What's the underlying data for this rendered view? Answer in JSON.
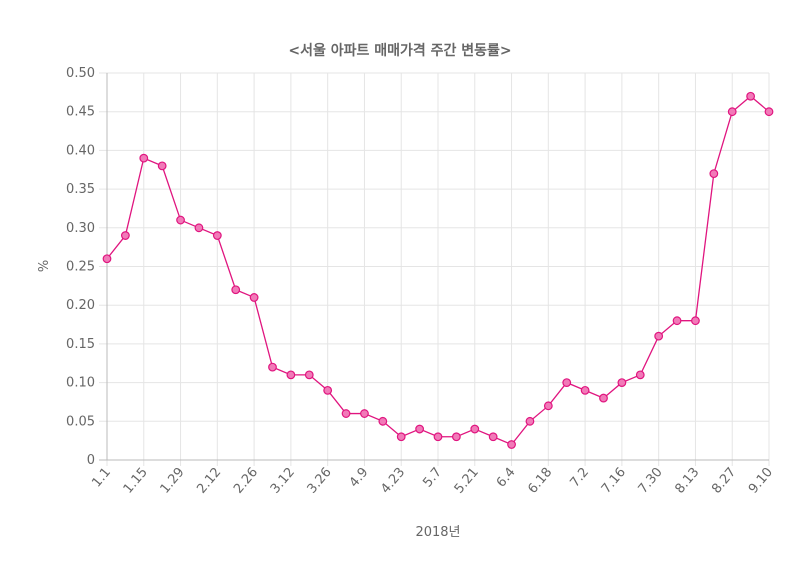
{
  "chart_data": {
    "type": "line",
    "title": "<서울 아파트 매매가격 주간 변동률>",
    "xlabel": "2018년",
    "ylabel": "%",
    "ylim": [
      0,
      0.5
    ],
    "yticks": [
      "0",
      "0.05",
      "0.10",
      "0.15",
      "0.20",
      "0.25",
      "0.30",
      "0.35",
      "0.40",
      "0.45",
      "0.50"
    ],
    "x_tick_labels": [
      "1.1",
      "1.15",
      "1.29",
      "2.12",
      "2.26",
      "3.12",
      "3.26",
      "4.9",
      "4.23",
      "5.7",
      "5.21",
      "6.4",
      "6.18",
      "7.2",
      "7.16",
      "7.30",
      "8.13",
      "8.27",
      "9.10"
    ],
    "grid": true,
    "legend": "none",
    "series": [
      {
        "color": "#e0157f",
        "x": [
          "1.1",
          "1.8",
          "1.15",
          "1.22",
          "1.29",
          "2.5",
          "2.12",
          "2.19",
          "2.26",
          "3.5",
          "3.12",
          "3.19",
          "3.26",
          "4.2",
          "4.9",
          "4.16",
          "4.23",
          "4.30",
          "5.7",
          "5.14",
          "5.21",
          "5.28",
          "6.4",
          "6.11",
          "6.18",
          "6.25",
          "7.2",
          "7.9",
          "7.16",
          "7.23",
          "7.30",
          "8.6",
          "8.13",
          "8.20",
          "8.27",
          "9.3",
          "9.10"
        ],
        "values": [
          0.26,
          0.29,
          0.39,
          0.38,
          0.31,
          0.3,
          0.29,
          0.22,
          0.21,
          0.12,
          0.11,
          0.11,
          0.09,
          0.06,
          0.06,
          0.05,
          0.03,
          0.04,
          0.03,
          0.03,
          0.04,
          0.03,
          0.02,
          0.05,
          0.07,
          0.1,
          0.09,
          0.08,
          0.1,
          0.11,
          0.16,
          0.18,
          0.18,
          0.37,
          0.45,
          0.47,
          0.45
        ]
      }
    ]
  }
}
